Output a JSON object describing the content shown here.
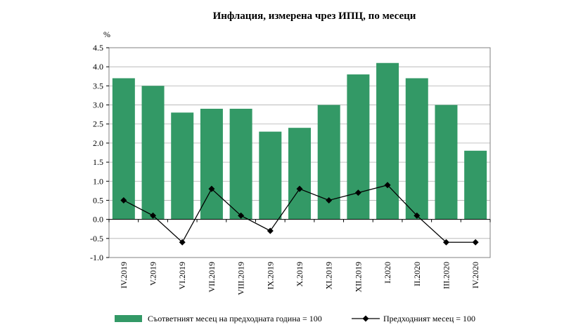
{
  "chart_data": {
    "type": "bar",
    "title": "Инфлация, измерена чрез ИПЦ, по месеци",
    "ylabel": "%",
    "xlabel": "",
    "ylim": [
      -1.0,
      4.5
    ],
    "ytick_step": 0.5,
    "yticks": [
      "-1.0",
      "-0.5",
      "0.0",
      "0.5",
      "1.0",
      "1.5",
      "2.0",
      "2.5",
      "3.0",
      "3.5",
      "4.0",
      "4.5"
    ],
    "grid": true,
    "legend_placement": "bottom",
    "categories": [
      "IV.2019",
      "V.2019",
      "VI.2019",
      "VII.2019",
      "VIII.2019",
      "IX.2019",
      "X.2019",
      "XI.2019",
      "XII.2019",
      "I.2020",
      "II.2020",
      "III.2020",
      "IV.2020"
    ],
    "series": [
      {
        "name": "Съответният месец на предходната година = 100",
        "kind": "bar",
        "color": "#339966",
        "values": [
          3.7,
          3.5,
          2.8,
          2.9,
          2.9,
          2.3,
          2.4,
          3.0,
          3.8,
          4.1,
          3.7,
          3.0,
          1.8
        ]
      },
      {
        "name": "Предходният месец = 100",
        "kind": "line",
        "color": "#000000",
        "marker": "diamond",
        "values": [
          0.5,
          0.1,
          -0.6,
          0.8,
          0.1,
          -0.3,
          0.8,
          0.5,
          0.7,
          0.9,
          0.1,
          -0.6,
          -0.6
        ]
      }
    ]
  }
}
